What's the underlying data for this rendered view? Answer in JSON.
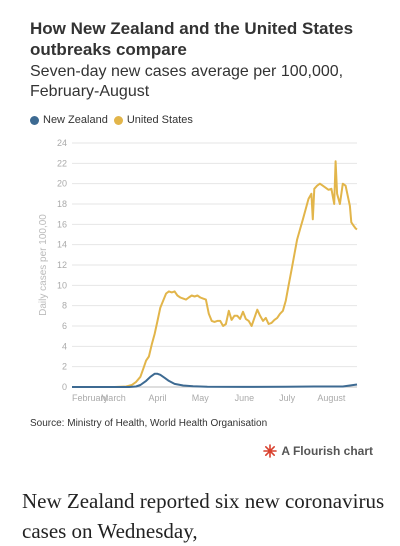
{
  "header": {
    "title": "How New Zealand and the United States outbreaks compare",
    "subtitle": "Seven-day new cases average per 100,000, February-August"
  },
  "colors": {
    "nz": "#3d6a92",
    "us": "#e2b54a",
    "grid": "#e6e6e6",
    "axis": "#bdbdbd"
  },
  "chart_data": {
    "type": "line",
    "ylabel": "Daily cases per 100,00",
    "ylim": [
      0,
      24
    ],
    "yticks": [
      "0",
      "2",
      "4",
      "6",
      "8",
      "10",
      "12",
      "14",
      "16",
      "18",
      "20",
      "22",
      "24"
    ],
    "xlim": [
      0,
      200
    ],
    "xticks": [
      {
        "label": "February",
        "value": 0
      },
      {
        "label": "March",
        "value": 29
      },
      {
        "label": "April",
        "value": 60
      },
      {
        "label": "May",
        "value": 90
      },
      {
        "label": "June",
        "value": 121
      },
      {
        "label": "July",
        "value": 151
      },
      {
        "label": "August",
        "value": 182
      }
    ],
    "legend": "top-left",
    "series": [
      {
        "name": "New Zealand",
        "x": [
          0,
          30,
          40,
          45,
          48,
          52,
          55,
          58,
          60,
          62,
          65,
          68,
          72,
          78,
          85,
          95,
          120,
          150,
          170,
          190,
          195,
          200
        ],
        "values": [
          0,
          0,
          0,
          0.05,
          0.2,
          0.6,
          1.0,
          1.3,
          1.3,
          1.2,
          0.9,
          0.6,
          0.3,
          0.15,
          0.08,
          0.03,
          0.01,
          0.03,
          0.05,
          0.05,
          0.15,
          0.25
        ]
      },
      {
        "name": "United States",
        "x": [
          0,
          30,
          38,
          42,
          45,
          48,
          50,
          52,
          54,
          56,
          58,
          60,
          62,
          64,
          66,
          68,
          70,
          72,
          74,
          76,
          78,
          80,
          82,
          84,
          86,
          88,
          90,
          92,
          94,
          96,
          98,
          100,
          102,
          104,
          106,
          108,
          110,
          112,
          114,
          116,
          118,
          120,
          122,
          124,
          126,
          128,
          130,
          132,
          134,
          136,
          138,
          140,
          142,
          144,
          146,
          148,
          150,
          152,
          154,
          156,
          158,
          160,
          162,
          164,
          166,
          168,
          169,
          170,
          172,
          174,
          176,
          178,
          180,
          182,
          184,
          185,
          186,
          187,
          188,
          190,
          192,
          194,
          195,
          196,
          198,
          199,
          200
        ],
        "values": [
          0,
          0,
          0.05,
          0.2,
          0.5,
          1.0,
          1.8,
          2.6,
          3.0,
          4.2,
          5.2,
          6.5,
          7.8,
          8.5,
          9.2,
          9.4,
          9.3,
          9.4,
          9.0,
          8.8,
          8.7,
          8.6,
          8.8,
          9.0,
          8.9,
          9.0,
          8.8,
          8.7,
          8.6,
          7.2,
          6.5,
          6.4,
          6.5,
          6.5,
          6.0,
          6.2,
          7.5,
          6.6,
          7.0,
          7.0,
          6.7,
          7.4,
          6.7,
          6.5,
          6.0,
          6.8,
          7.6,
          7.0,
          6.5,
          6.8,
          6.2,
          6.3,
          6.6,
          6.8,
          7.2,
          7.5,
          8.5,
          10.0,
          11.5,
          13.0,
          14.5,
          15.5,
          16.5,
          17.5,
          18.5,
          19.0,
          16.5,
          19.5,
          19.8,
          20.0,
          19.8,
          19.6,
          19.4,
          19.5,
          18.0,
          22.2,
          19.0,
          18.5,
          18.0,
          20.0,
          19.8,
          18.5,
          17.8,
          16.2,
          15.8,
          15.6,
          15.5
        ]
      }
    ]
  },
  "footer": {
    "source": "Source: Ministry of Health, World Health Organisation",
    "flourish_label": "A Flourish chart"
  },
  "article": {
    "text": "New Zealand reported six new coronavirus cases on Wednesday,"
  }
}
